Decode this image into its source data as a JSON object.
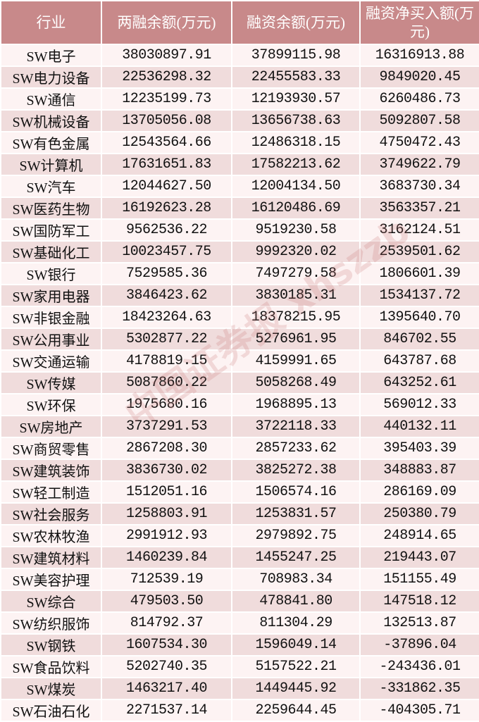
{
  "headers": [
    "行业",
    "两融余额(万元)",
    "融资余额(万元)",
    "融资净买入额(万元)"
  ],
  "watermark": "中国证券报 xhszzb",
  "colors": {
    "header_bg": "#c8898a",
    "row_odd": "#fdf3f3",
    "row_even": "#f0dcdc"
  },
  "rows": [
    [
      "SW电子",
      "38030897.91",
      "37899115.98",
      "16316913.88"
    ],
    [
      "SW电力设备",
      "22536298.32",
      "22455583.33",
      "9849020.45"
    ],
    [
      "SW通信",
      "12235199.73",
      "12193930.57",
      "6260486.73"
    ],
    [
      "SW机械设备",
      "13705056.08",
      "13656738.63",
      "5092807.58"
    ],
    [
      "SW有色金属",
      "12543564.66",
      "12486318.15",
      "4750472.43"
    ],
    [
      "SW计算机",
      "17631651.83",
      "17582213.62",
      "3749622.79"
    ],
    [
      "SW汽车",
      "12044627.50",
      "12004134.50",
      "3683730.34"
    ],
    [
      "SW医药生物",
      "16192623.28",
      "16120486.69",
      "3563357.21"
    ],
    [
      "SW国防军工",
      "9562536.22",
      "9519230.58",
      "3162124.51"
    ],
    [
      "SW基础化工",
      "10023457.75",
      "9992320.02",
      "2539501.62"
    ],
    [
      "SW银行",
      "7529585.36",
      "7497279.58",
      "1806601.39"
    ],
    [
      "SW家用电器",
      "3846423.62",
      "3830185.31",
      "1534137.72"
    ],
    [
      "SW非银金融",
      "18423264.63",
      "18378215.95",
      "1395640.70"
    ],
    [
      "SW公用事业",
      "5302877.22",
      "5276961.95",
      "846702.55"
    ],
    [
      "SW交通运输",
      "4178819.15",
      "4159991.65",
      "643787.68"
    ],
    [
      "SW传媒",
      "5087860.22",
      "5058268.49",
      "643252.61"
    ],
    [
      "SW环保",
      "1975680.16",
      "1968895.13",
      "569012.33"
    ],
    [
      "SW房地产",
      "3737291.53",
      "3722118.33",
      "440132.11"
    ],
    [
      "SW商贸零售",
      "2867208.30",
      "2857233.62",
      "395403.39"
    ],
    [
      "SW建筑装饰",
      "3836730.02",
      "3825272.38",
      "348883.87"
    ],
    [
      "SW轻工制造",
      "1512051.16",
      "1506574.16",
      "286169.09"
    ],
    [
      "SW社会服务",
      "1258803.91",
      "1253831.57",
      "250380.79"
    ],
    [
      "SW农林牧渔",
      "2991912.93",
      "2979892.75",
      "248914.65"
    ],
    [
      "SW建筑材料",
      "1460239.84",
      "1455247.25",
      "219443.07"
    ],
    [
      "SW美容护理",
      "712539.19",
      "708983.34",
      "151155.49"
    ],
    [
      "SW综合",
      "479503.50",
      "478841.80",
      "147518.12"
    ],
    [
      "SW纺织服饰",
      "814792.37",
      "811304.29",
      "132513.87"
    ],
    [
      "SW钢铁",
      "1607534.30",
      "1596049.14",
      "-37896.04"
    ],
    [
      "SW食品饮料",
      "5202740.35",
      "5157522.21",
      "-243436.01"
    ],
    [
      "SW煤炭",
      "1463217.40",
      "1449445.92",
      "-331862.35"
    ],
    [
      "SW石油石化",
      "2271537.14",
      "2259644.45",
      "-404305.71"
    ]
  ]
}
